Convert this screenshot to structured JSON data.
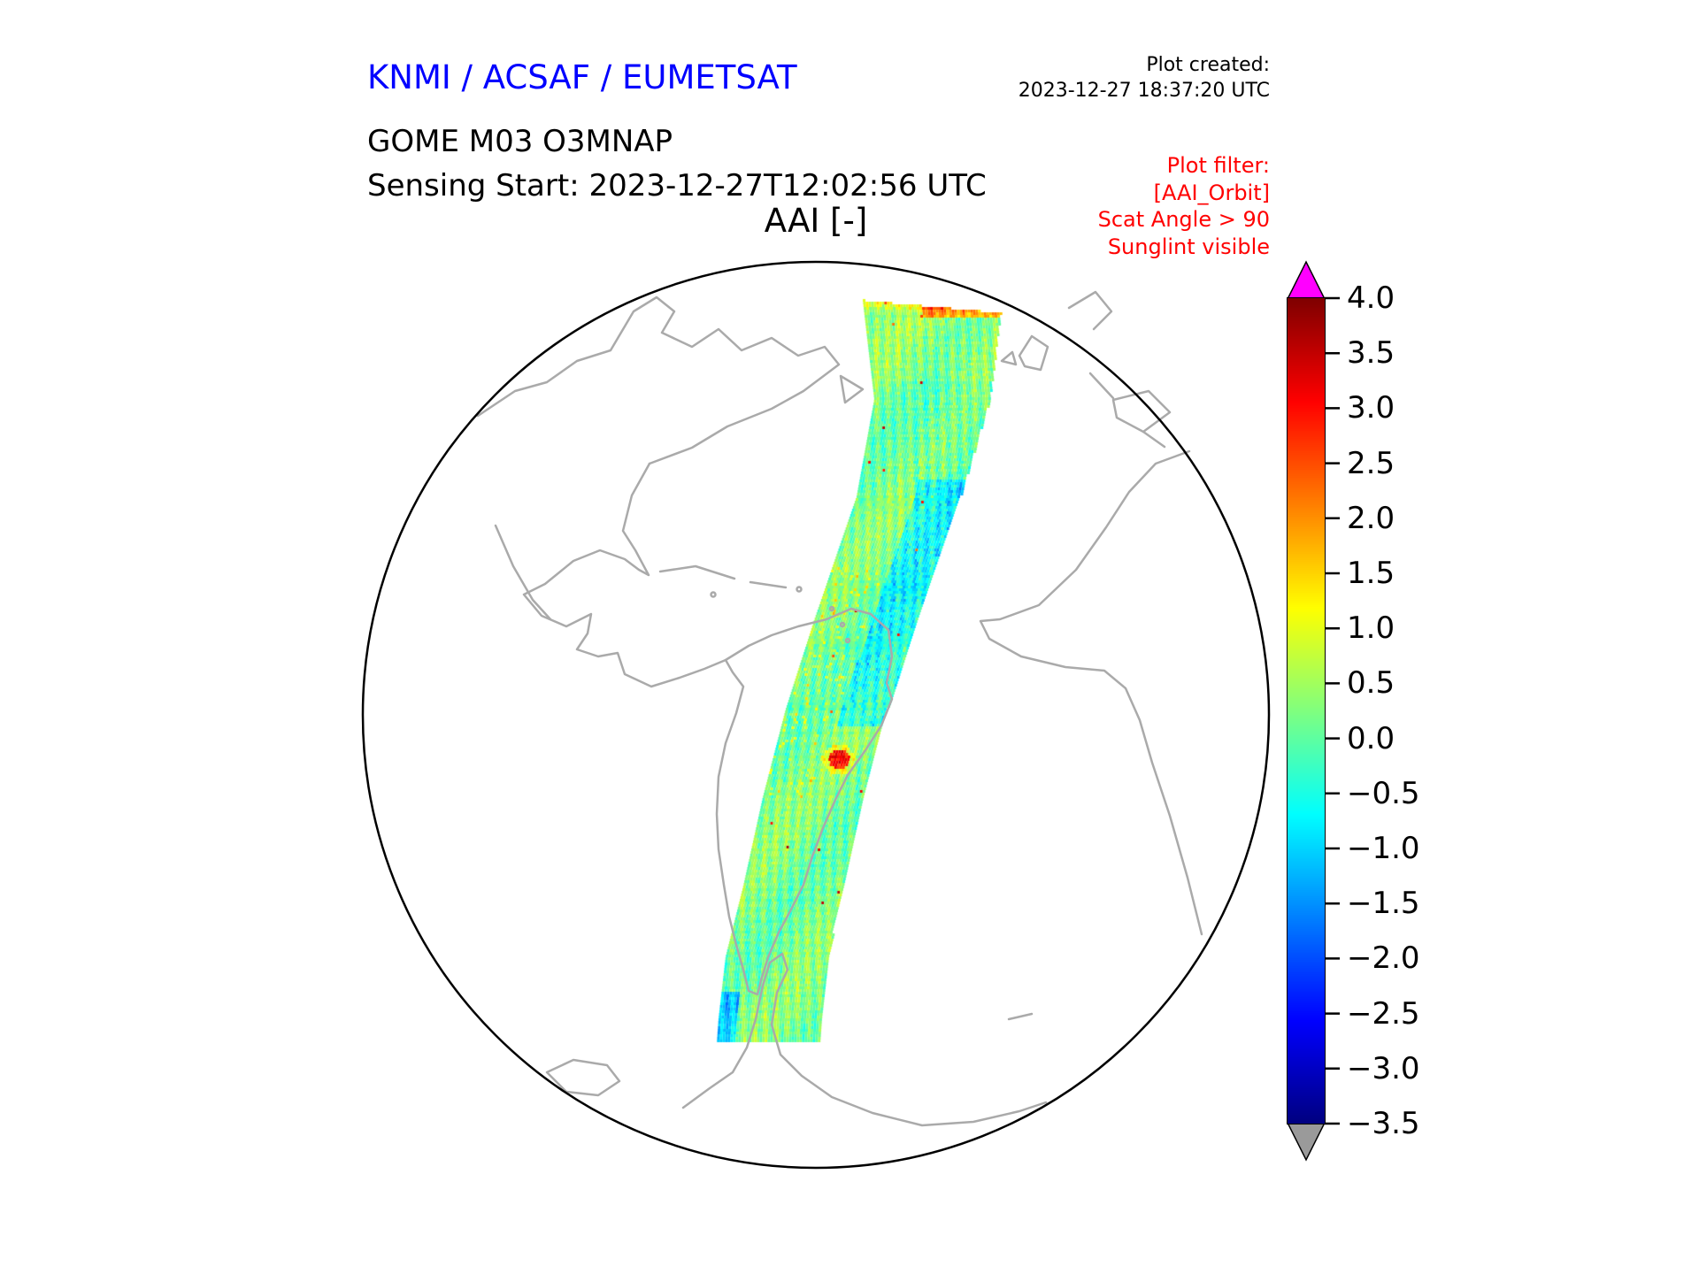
{
  "header": {
    "agency_title": "KNMI / ACSAF / EUMETSAT",
    "plot_created_label": "Plot created:",
    "plot_created_timestamp": "2023-12-27 18:37:20 UTC",
    "product_title": "GOME M03 O3MNAP",
    "sensing_start": "Sensing Start: 2023-12-27T12:02:56 UTC",
    "quantity_title": "AAI [-]"
  },
  "plot_filter": {
    "color": "#ff0000",
    "lines": [
      "Plot filter:",
      "[AAI_Orbit]",
      "Scat Angle > 90",
      "Sunglint visible"
    ]
  },
  "colors": {
    "title_blue": "#0000ff",
    "coastline_gray": "#aaaaaa",
    "globe_outline": "#000000",
    "over_arrow": "#ff00ff",
    "under_arrow": "#9a9a9a"
  },
  "chart_data": {
    "type": "heatmap",
    "title": "AAI [-]",
    "projection": "orthographic globe, Atlantic view (Americas, West Africa, Antarctica visible)",
    "colormap": "jet",
    "value_range": [
      -3.5,
      4.0
    ],
    "colorbar_ticks": [
      4.0,
      3.5,
      3.0,
      2.5,
      2.0,
      1.5,
      1.0,
      0.5,
      0.0,
      -0.5,
      -1.0,
      -1.5,
      -2.0,
      -2.5,
      -3.0,
      -3.5
    ],
    "colorbar_tick_labels": [
      "4.0",
      "3.5",
      "3.0",
      "2.5",
      "2.0",
      "1.5",
      "1.0",
      "0.5",
      "0.0",
      "−0.5",
      "−1.0",
      "−1.5",
      "−2.0",
      "−2.5",
      "−3.0",
      "−3.5"
    ],
    "colorbar_over_color": "magenta arrow (values > 4.0)",
    "colorbar_under_color": "gray arrow (values < -3.5)",
    "swath": {
      "description": "Single GOME-2 / Metop orbit swath of Absorbing Aerosol Index, running from the North Atlantic southward across eastern South America down to the Antarctic coast",
      "typical_values": "mostly between -1.0 and +1.0 (cyan / green / yellow), with local blue minima near -2 east of South America and sparse red maxima near +3 (one spot over southern South America and streaks at the northern swath edge)"
    }
  }
}
